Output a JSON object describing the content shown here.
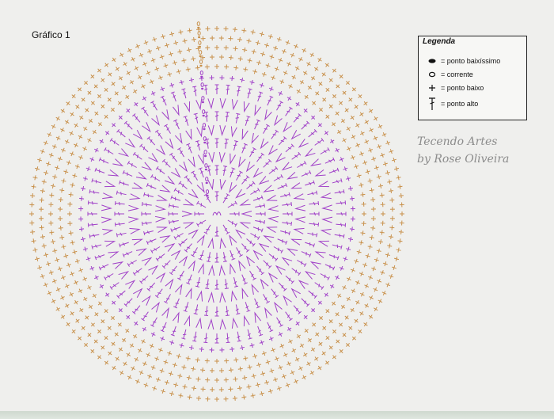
{
  "chart": {
    "title": "Gráfico 1",
    "center_symbol": "ch",
    "rows": [
      {
        "stitch": "dc",
        "count": 12,
        "color": "#a040c8"
      },
      {
        "stitch": "v",
        "count": 18,
        "color": "#a040c8"
      },
      {
        "stitch": "dc",
        "count": 36,
        "color": "#a040c8"
      },
      {
        "stitch": "v",
        "count": 36,
        "color": "#a040c8"
      },
      {
        "stitch": "dc",
        "count": 48,
        "color": "#a040c8"
      },
      {
        "stitch": "v",
        "count": 48,
        "color": "#a040c8"
      },
      {
        "stitch": "dc",
        "count": 60,
        "color": "#a040c8"
      },
      {
        "stitch": "v",
        "count": 60,
        "color": "#a040c8"
      },
      {
        "stitch": "dc",
        "count": 72,
        "color": "#a040c8"
      },
      {
        "stitch": "sc",
        "count": 84,
        "color": "#a040c8"
      },
      {
        "stitch": "sc",
        "count": 96,
        "color": "#c8904a"
      },
      {
        "stitch": "sc",
        "count": 104,
        "color": "#c8904a"
      },
      {
        "stitch": "sc",
        "count": 112,
        "color": "#c8904a"
      },
      {
        "stitch": "sc",
        "count": 120,
        "color": "#c8904a"
      },
      {
        "stitch": "sc",
        "count": 128,
        "color": "#c8904a"
      }
    ],
    "colors": {
      "purple": "#a040c8",
      "orange": "#c8904a"
    }
  },
  "legend": {
    "title": "Legenda",
    "items": [
      {
        "symbol": "slip-stitch-icon",
        "label": "= ponto baixíssimo"
      },
      {
        "symbol": "chain-icon",
        "label": "= corrente"
      },
      {
        "symbol": "single-crochet-icon",
        "label": "= ponto baixo"
      },
      {
        "symbol": "double-crochet-icon",
        "label": "= ponto alto"
      }
    ]
  },
  "watermark": {
    "line1": "Tecendo Artes",
    "line2": "by Rose Oliveira"
  }
}
